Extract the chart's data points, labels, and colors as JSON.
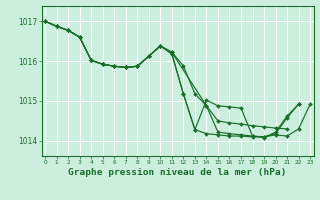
{
  "background_color": "#cceedd",
  "grid_color": "#ffffff",
  "line_color": "#1a6e2a",
  "xlabel": "Graphe pression niveau de la mer (hPa)",
  "xlim": [
    -0.3,
    23.3
  ],
  "ylim": [
    1013.62,
    1017.38
  ],
  "yticks": [
    1014,
    1015,
    1016,
    1017
  ],
  "xticks": [
    0,
    1,
    2,
    3,
    4,
    5,
    6,
    7,
    8,
    9,
    10,
    11,
    12,
    13,
    14,
    15,
    16,
    17,
    18,
    19,
    20,
    21,
    22,
    23
  ],
  "series": [
    {
      "x": [
        0,
        1,
        2,
        3,
        4,
        5,
        6,
        7,
        8,
        9,
        10,
        11,
        14,
        15,
        16,
        17,
        18,
        19,
        20,
        21
      ],
      "y": [
        1017.0,
        1016.87,
        1016.77,
        1016.6,
        1016.02,
        1015.92,
        1015.87,
        1015.84,
        1015.87,
        1016.12,
        1016.38,
        1016.22,
        1014.88,
        1014.5,
        1014.45,
        1014.42,
        1014.38,
        1014.35,
        1014.32,
        1014.3
      ]
    },
    {
      "x": [
        0,
        1,
        2,
        3,
        4,
        5,
        6,
        7,
        8,
        9,
        10,
        11,
        12,
        13,
        14,
        15,
        16,
        17,
        18,
        19,
        20,
        21,
        22,
        23
      ],
      "y": [
        1017.0,
        1016.87,
        1016.77,
        1016.6,
        1016.02,
        1015.92,
        1015.87,
        1015.84,
        1015.87,
        1016.12,
        1016.38,
        1016.22,
        1015.88,
        1015.18,
        1014.88,
        1014.22,
        1014.18,
        1014.15,
        1014.12,
        1014.1,
        1014.15,
        1014.12,
        1014.3,
        1014.92
      ]
    },
    {
      "x": [
        0,
        1,
        2,
        3,
        4,
        5,
        6,
        7,
        8,
        9,
        10,
        11,
        12,
        13,
        14,
        15,
        16,
        17,
        18,
        19,
        20,
        21,
        22
      ],
      "y": [
        1017.0,
        1016.87,
        1016.77,
        1016.6,
        1016.02,
        1015.92,
        1015.87,
        1015.84,
        1015.87,
        1016.12,
        1016.38,
        1016.18,
        1015.18,
        1014.28,
        1014.18,
        1014.15,
        1014.12,
        1014.12,
        1014.1,
        1014.1,
        1014.18,
        1014.58,
        1014.92
      ]
    },
    {
      "x": [
        0,
        1,
        2,
        3,
        4,
        5,
        6,
        7,
        8,
        9,
        10,
        11,
        12,
        13,
        14,
        15,
        16,
        17,
        18,
        19,
        20,
        21,
        22
      ],
      "y": [
        1017.0,
        1016.87,
        1016.77,
        1016.6,
        1016.02,
        1015.92,
        1015.87,
        1015.84,
        1015.87,
        1016.12,
        1016.38,
        1016.18,
        1015.18,
        1014.28,
        1015.02,
        1014.88,
        1014.85,
        1014.82,
        1014.12,
        1014.08,
        1014.22,
        1014.62,
        1014.92
      ]
    }
  ]
}
